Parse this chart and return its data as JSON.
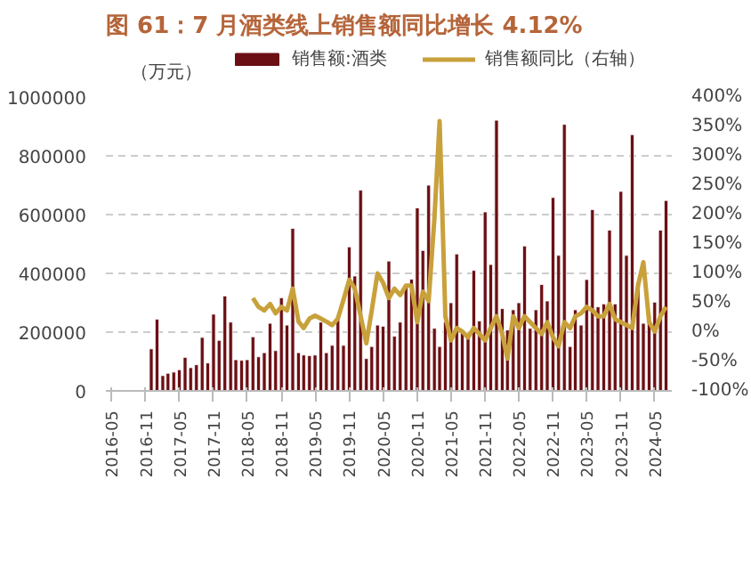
{
  "chart_data": {
    "type": "bar",
    "title": "图 61：7 月酒类线上销售额同比增长 4.12%",
    "ylabel": "（万元）",
    "xlim": [
      "2016-04",
      "2024-08"
    ],
    "xticks": [
      {
        "value": "2016-05",
        "label": "2016-05"
      },
      {
        "value": "2016-11",
        "label": "2016-11"
      },
      {
        "value": "2017-05",
        "label": "2017-05"
      },
      {
        "value": "2017-11",
        "label": "2017-11"
      },
      {
        "value": "2018-05",
        "label": "2018-05"
      },
      {
        "value": "2018-11",
        "label": "2018-11"
      },
      {
        "value": "2019-05",
        "label": "2019-05"
      },
      {
        "value": "2019-11",
        "label": "2019-11"
      },
      {
        "value": "2020-05",
        "label": "2020-05"
      },
      {
        "value": "2020-11",
        "label": "2020-11"
      },
      {
        "value": "2021-05",
        "label": "2021-05"
      },
      {
        "value": "2021-11",
        "label": "2021-11"
      },
      {
        "value": "2022-05",
        "label": "2022-05"
      },
      {
        "value": "2022-11",
        "label": "2022-11"
      },
      {
        "value": "2023-05",
        "label": "2023-05"
      },
      {
        "value": "2023-11",
        "label": "2023-11"
      },
      {
        "value": "2024-05",
        "label": "2024-05"
      }
    ],
    "ylim": [
      0,
      1000000
    ],
    "yticks": [
      0,
      200000,
      400000,
      600000,
      800000,
      1000000
    ],
    "y2lim": [
      -100,
      400
    ],
    "y2ticks": [
      {
        "value": -100,
        "label": "-100%"
      },
      {
        "value": -50,
        "label": "-50%"
      },
      {
        "value": 0,
        "label": "0%"
      },
      {
        "value": 50,
        "label": "50%"
      },
      {
        "value": 100,
        "label": "100%"
      },
      {
        "value": 150,
        "label": "150%"
      },
      {
        "value": 200,
        "label": "200%"
      },
      {
        "value": 250,
        "label": "250%"
      },
      {
        "value": 300,
        "label": "300%"
      },
      {
        "value": 350,
        "label": "350%"
      },
      {
        "value": 400,
        "label": "400%"
      }
    ],
    "grid": "y",
    "legend": "top",
    "series": [
      {
        "name": "销售额:酒类",
        "color": "#6b0f14",
        "x": [
          "2016-12",
          "2017-01",
          "2017-02",
          "2017-03",
          "2017-04",
          "2017-05",
          "2017-06",
          "2017-07",
          "2017-08",
          "2017-09",
          "2017-10",
          "2017-11",
          "2017-12",
          "2018-01",
          "2018-02",
          "2018-03",
          "2018-04",
          "2018-05",
          "2018-06",
          "2018-07",
          "2018-08",
          "2018-09",
          "2018-10",
          "2018-11",
          "2018-12",
          "2019-01",
          "2019-02",
          "2019-03",
          "2019-04",
          "2019-05",
          "2019-06",
          "2019-07",
          "2019-08",
          "2019-09",
          "2019-10",
          "2019-11",
          "2019-12",
          "2020-01",
          "2020-02",
          "2020-03",
          "2020-04",
          "2020-05",
          "2020-06",
          "2020-07",
          "2020-08",
          "2020-09",
          "2020-10",
          "2020-11",
          "2020-12",
          "2021-01",
          "2021-02",
          "2021-03",
          "2021-04",
          "2021-05",
          "2021-06",
          "2021-07",
          "2021-08",
          "2021-09",
          "2021-10",
          "2021-11",
          "2021-12",
          "2022-01",
          "2022-02",
          "2022-03",
          "2022-04",
          "2022-05",
          "2022-06",
          "2022-07",
          "2022-08",
          "2022-09",
          "2022-10",
          "2022-11",
          "2022-12",
          "2023-01",
          "2023-02",
          "2023-03",
          "2023-04",
          "2023-05",
          "2023-06",
          "2023-07",
          "2023-08",
          "2023-09",
          "2023-10",
          "2023-11",
          "2023-12",
          "2024-01",
          "2024-02",
          "2024-03",
          "2024-04",
          "2024-05",
          "2024-06",
          "2024-07"
        ],
        "values": [
          143000,
          244000,
          52000,
          60000,
          64000,
          72000,
          114000,
          79000,
          89000,
          182000,
          95000,
          261000,
          172000,
          323000,
          234000,
          106000,
          104000,
          106000,
          184000,
          116000,
          130000,
          230000,
          137000,
          317000,
          224000,
          553000,
          130000,
          122000,
          120000,
          122000,
          234000,
          130000,
          155000,
          255000,
          155000,
          490000,
          391000,
          683000,
          110000,
          151000,
          224000,
          220000,
          442000,
          186000,
          234000,
          364000,
          380000,
          623000,
          478000,
          700000,
          213000,
          151000,
          234000,
          300000,
          466000,
          202000,
          196000,
          410000,
          238000,
          609000,
          430000,
          921000,
          280000,
          207000,
          276000,
          300000,
          493000,
          213000,
          276000,
          362000,
          306000,
          658000,
          461000,
          907000,
          151000,
          276000,
          224000,
          379000,
          617000,
          286000,
          296000,
          547000,
          296000,
          679000,
          461000,
          872000,
          369000,
          230000,
          260000,
          302000,
          547000,
          648000
        ]
      },
      {
        "name": "销售额同比（右轴）",
        "type": "line",
        "axis": "y2",
        "color": "#c9a13b",
        "x": [
          "2018-06",
          "2018-07",
          "2018-08",
          "2018-09",
          "2018-10",
          "2018-11",
          "2018-12",
          "2019-01",
          "2019-02",
          "2019-03",
          "2019-04",
          "2019-05",
          "2019-06",
          "2019-07",
          "2019-08",
          "2019-09",
          "2019-10",
          "2019-11",
          "2019-12",
          "2020-01",
          "2020-02",
          "2020-03",
          "2020-04",
          "2020-05",
          "2020-06",
          "2020-07",
          "2020-08",
          "2020-09",
          "2020-10",
          "2020-11",
          "2020-12",
          "2021-01",
          "2021-02",
          "2021-03",
          "2021-04",
          "2021-05",
          "2021-06",
          "2021-07",
          "2021-08",
          "2021-09",
          "2021-10",
          "2021-11",
          "2021-12",
          "2022-01",
          "2022-02",
          "2022-03",
          "2022-04",
          "2022-05",
          "2022-06",
          "2022-07",
          "2022-08",
          "2022-09",
          "2022-10",
          "2022-11",
          "2022-12",
          "2023-01",
          "2023-02",
          "2023-03",
          "2023-04",
          "2023-05",
          "2023-06",
          "2023-07",
          "2023-08",
          "2023-09",
          "2023-10",
          "2023-11",
          "2023-12",
          "2024-01",
          "2024-02",
          "2024-03",
          "2024-04",
          "2024-05",
          "2024-06",
          "2024-07"
        ],
        "values": [
          58,
          43,
          37,
          48,
          32,
          43,
          37,
          74,
          18,
          7,
          23,
          28,
          23,
          18,
          12,
          23,
          55,
          89,
          74,
          28,
          -19,
          37,
          100,
          84,
          58,
          74,
          63,
          79,
          79,
          17,
          69,
          53,
          193,
          359,
          27,
          -14,
          7,
          1,
          -9,
          7,
          -3,
          -14,
          7,
          27,
          -3,
          -45,
          27,
          7,
          27,
          17,
          7,
          -3,
          17,
          -9,
          -24,
          17,
          7,
          27,
          32,
          43,
          37,
          27,
          27,
          48,
          22,
          17,
          12,
          7,
          79,
          119,
          17,
          1,
          27,
          43
        ]
      }
    ]
  }
}
